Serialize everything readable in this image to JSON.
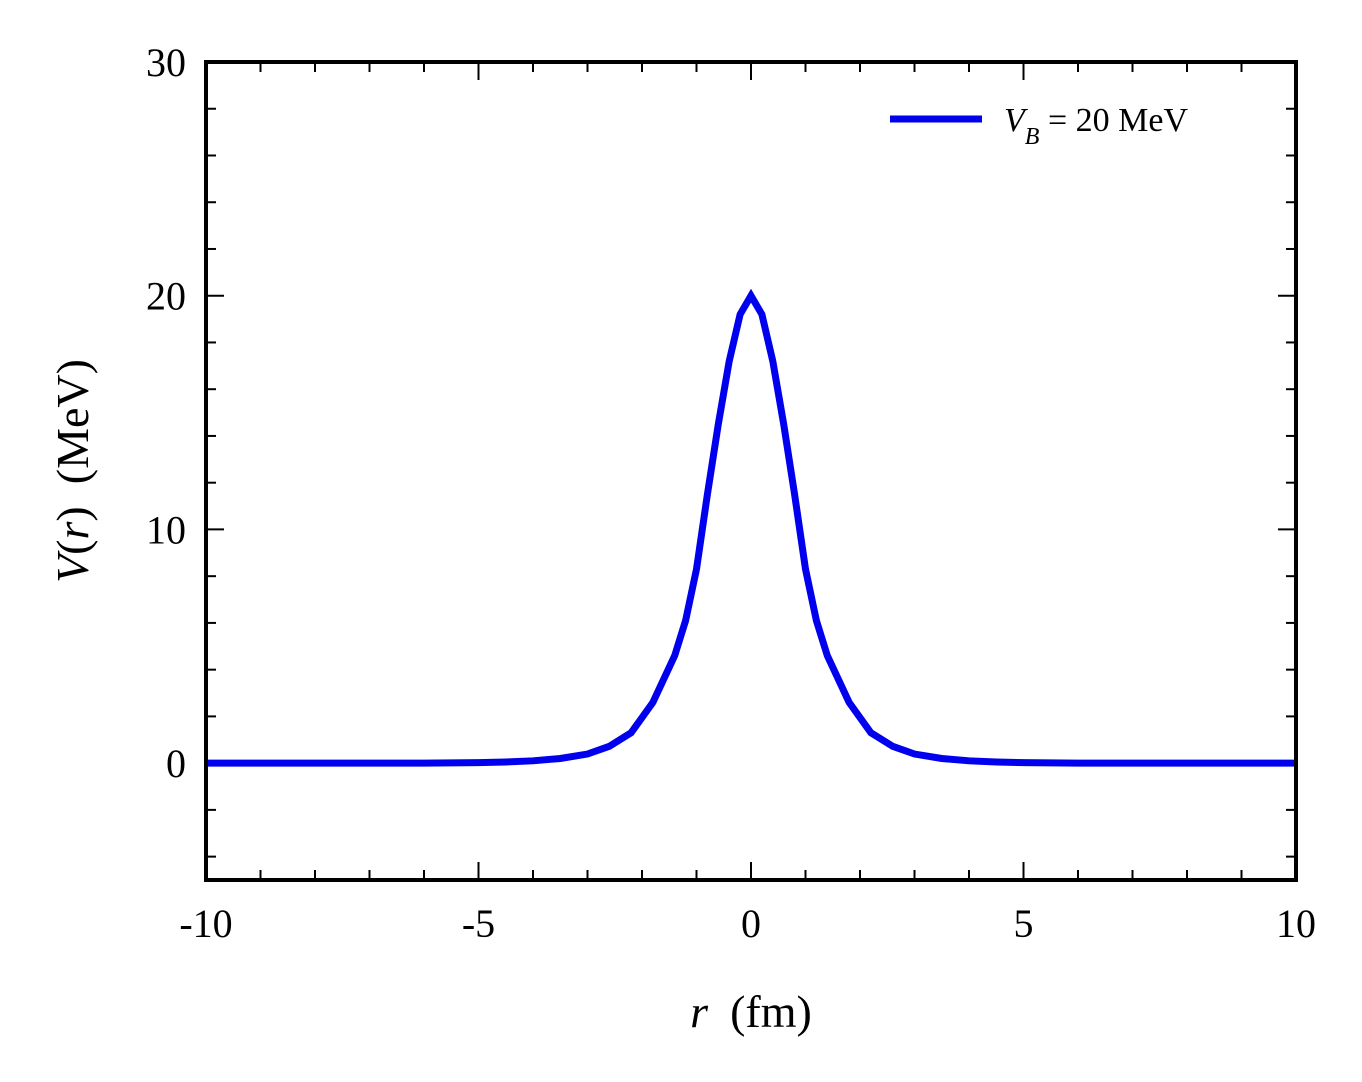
{
  "chart_data": {
    "type": "line",
    "title": "",
    "xlabel": {
      "symbol": "r",
      "unit": "(fm)"
    },
    "ylabel": {
      "symbol": "V",
      "arg": "r",
      "unit": "(MeV)"
    },
    "xlim": [
      -10,
      10
    ],
    "ylim": [
      -5,
      30
    ],
    "xticks": [
      -10,
      -5,
      0,
      5,
      10
    ],
    "xtick_labels": [
      "-10",
      "-5",
      "0",
      "5",
      "10"
    ],
    "yticks": [
      0,
      10,
      20,
      30
    ],
    "ytick_labels": [
      "0",
      "10",
      "20",
      "30"
    ],
    "grid": false,
    "legend_position": "top-right",
    "series": [
      {
        "name": "V_B = 20 MeV",
        "legend": {
          "symbol": "V",
          "subscript": "B",
          "rest": " = 20 MeV"
        },
        "color": "#0000ee",
        "x": [
          -10,
          -9,
          -8,
          -7,
          -6,
          -5,
          -4.5,
          -4,
          -3.5,
          -3,
          -2.6,
          -2.2,
          -1.8,
          -1.4,
          -1.2,
          -1.0,
          -0.8,
          -0.6,
          -0.4,
          -0.2,
          0,
          0.2,
          0.4,
          0.6,
          0.8,
          1.0,
          1.2,
          1.4,
          1.8,
          2.2,
          2.6,
          3,
          3.5,
          4,
          4.5,
          5,
          6,
          7,
          8,
          9,
          10
        ],
        "y": [
          0.0,
          0.0,
          0.0,
          0.0,
          0.0,
          0.02,
          0.05,
          0.1,
          0.2,
          0.39,
          0.72,
          1.3,
          2.6,
          4.6,
          6.1,
          8.3,
          11.5,
          14.5,
          17.2,
          19.2,
          20.0,
          19.2,
          17.2,
          14.5,
          11.5,
          8.3,
          6.1,
          4.6,
          2.6,
          1.3,
          0.72,
          0.39,
          0.2,
          0.1,
          0.05,
          0.02,
          0.0,
          0.0,
          0.0,
          0.0,
          0.0
        ]
      }
    ]
  }
}
